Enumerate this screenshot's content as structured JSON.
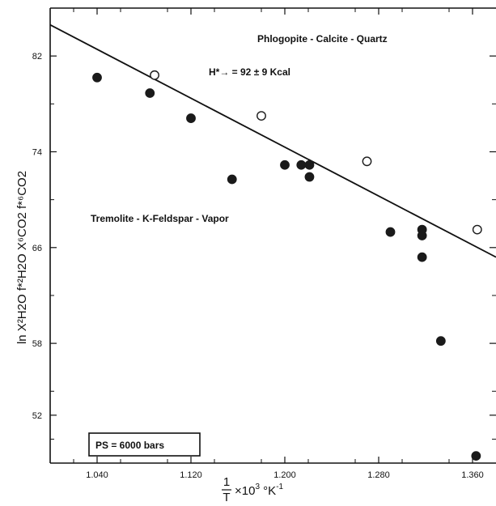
{
  "chart_data": {
    "type": "scatter",
    "xlabel": "1/T ×10³ °K⁻¹",
    "ylabel": "ln X²H2O f*²H2O X⁶CO2 f*⁶CO2",
    "xlim": [
      1.0,
      1.38
    ],
    "ylim": [
      48,
      86
    ],
    "xticks": [
      1.04,
      1.12,
      1.2,
      1.28,
      1.36
    ],
    "xtick_labels": [
      "1.040",
      "1.120",
      "1.200",
      "1.280",
      "1.360"
    ],
    "yticks": [
      52,
      58,
      66,
      74,
      82
    ],
    "ytick_labels": [
      "52",
      "58",
      "66",
      "74",
      "82"
    ],
    "grid": false,
    "series": [
      {
        "marker": "filled-circle",
        "points": [
          {
            "x": 1.04,
            "y": 80.2
          },
          {
            "x": 1.085,
            "y": 78.9
          },
          {
            "x": 1.12,
            "y": 76.8
          },
          {
            "x": 1.155,
            "y": 71.7
          },
          {
            "x": 1.2,
            "y": 72.9
          },
          {
            "x": 1.214,
            "y": 72.9
          },
          {
            "x": 1.221,
            "y": 72.9
          },
          {
            "x": 1.221,
            "y": 71.9
          },
          {
            "x": 1.29,
            "y": 67.3
          },
          {
            "x": 1.317,
            "y": 67.5
          },
          {
            "x": 1.317,
            "y": 67.0
          },
          {
            "x": 1.317,
            "y": 65.2
          },
          {
            "x": 1.333,
            "y": 58.2
          },
          {
            "x": 1.363,
            "y": 48.6
          }
        ]
      },
      {
        "marker": "open-circle",
        "points": [
          {
            "x": 1.089,
            "y": 80.4
          },
          {
            "x": 1.18,
            "y": 77.0
          },
          {
            "x": 1.27,
            "y": 73.2
          },
          {
            "x": 1.364,
            "y": 67.5
          }
        ]
      }
    ],
    "fit_line": {
      "x": [
        1.0,
        1.38
      ],
      "y": [
        84.6,
        65.2
      ]
    },
    "annotations": {
      "top": "Phlogopite - Calcite - Quartz",
      "enthalpy": "H*→ = 92 ± 9 Kcal",
      "middle": "Tremolite - K-Feldspar - Vapor",
      "pressure": "PS = 6000 bars"
    },
    "xlabel_parts": {
      "frac_num": "1",
      "frac_den": "T",
      "rest": "×10",
      "exp": "3",
      "unit": " °K",
      "unit_exp": "-1"
    }
  }
}
